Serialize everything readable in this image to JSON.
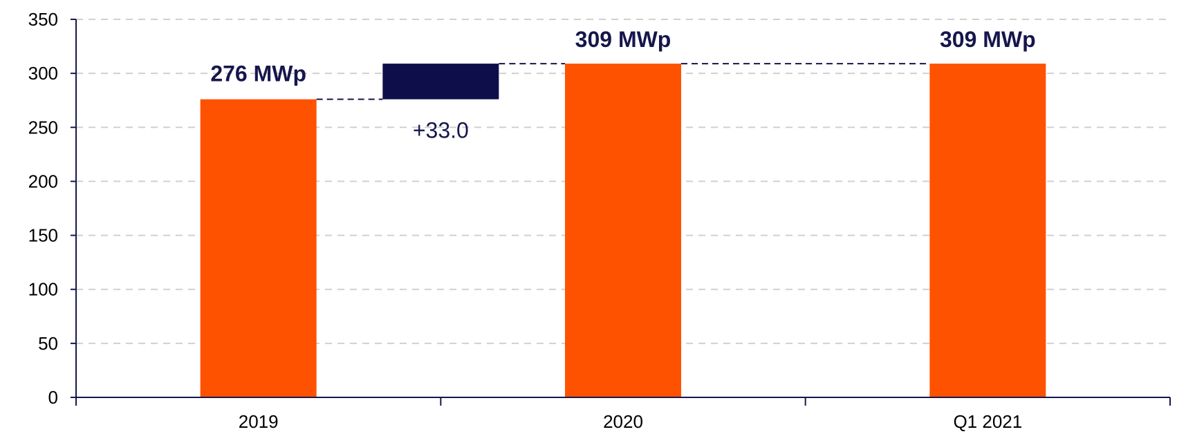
{
  "chart_data": {
    "type": "bar",
    "subtype": "waterfall",
    "title": "",
    "xlabel": "",
    "ylabel": "",
    "ylim": [
      0,
      350
    ],
    "yticks": [
      0,
      50,
      100,
      150,
      200,
      250,
      300,
      350
    ],
    "grid": true,
    "categories": [
      "2019",
      "2020",
      "Q1 2021"
    ],
    "totals": [
      {
        "category": "2019",
        "value": 276,
        "label": "276 MWp"
      },
      {
        "category": "2020",
        "value": 309,
        "label": "309 MWp"
      },
      {
        "category": "Q1 2021",
        "value": 309,
        "label": "309 MWp"
      }
    ],
    "increments": [
      {
        "between": [
          "2019",
          "2020"
        ],
        "from": 276,
        "to": 309,
        "value": 33.0,
        "label": "+33.0"
      }
    ],
    "colors": {
      "total_bar": "#FF5200",
      "increment_bar": "#0E0E4A",
      "label_text": "#16164D",
      "axis": "#16164D",
      "grid": "#D0D0D0"
    }
  }
}
